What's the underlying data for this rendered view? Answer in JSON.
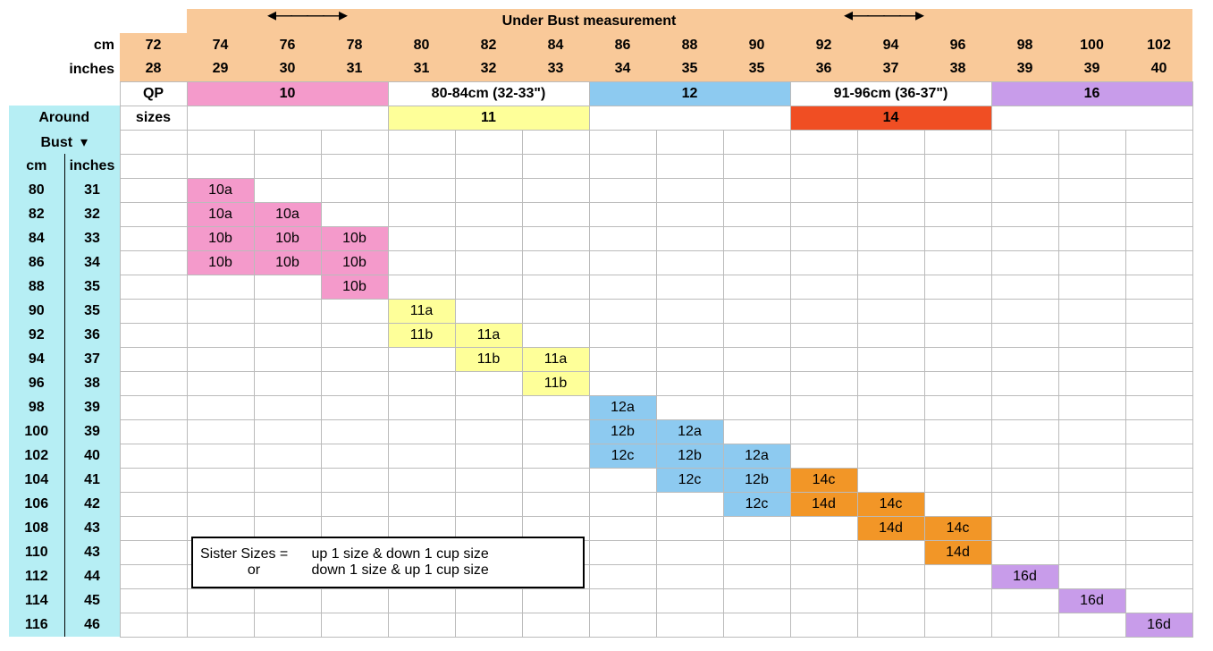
{
  "colors": {
    "peach": "#f9c999",
    "teal": "#b6eef4",
    "pink": "#f49acb",
    "yellow": "#feff99",
    "blue": "#8dcaf0",
    "orange": "#f29627",
    "orangered": "#f04e23",
    "purple": "#c89cea",
    "white": "#ffffff"
  },
  "header": {
    "title": "Under Bust measurement",
    "row_cm_label": "cm",
    "row_in_label": "inches",
    "cm": [
      72,
      74,
      76,
      78,
      80,
      82,
      84,
      86,
      88,
      90,
      92,
      94,
      96,
      98,
      100,
      102
    ],
    "in": [
      28,
      29,
      30,
      31,
      31,
      32,
      33,
      34,
      35,
      35,
      36,
      37,
      38,
      39,
      39,
      40
    ],
    "qp_label": "QP",
    "sizes_label": "sizes",
    "band1": [
      {
        "text": "10",
        "color": "pink",
        "span": 3
      },
      {
        "text": "80-84cm (32-33\")",
        "color": "white",
        "span": 3
      },
      {
        "text": "12",
        "color": "blue",
        "span": 3
      },
      {
        "text": "91-96cm (36-37\")",
        "color": "white",
        "span": 3
      },
      {
        "text": "16",
        "color": "purple",
        "span": 3
      }
    ],
    "band2": [
      {
        "text": "",
        "color": "white",
        "span": 3
      },
      {
        "text": "11",
        "color": "yellow",
        "span": 3
      },
      {
        "text": "",
        "color": "white",
        "span": 3
      },
      {
        "text": "14",
        "color": "orangered",
        "span": 3
      },
      {
        "text": "",
        "color": "white",
        "span": 3
      }
    ]
  },
  "side": {
    "title1": "Around",
    "title2": "Bust",
    "col_cm": "cm",
    "col_in": "inches",
    "rows": [
      {
        "cm": 80,
        "in": 31
      },
      {
        "cm": 82,
        "in": 32
      },
      {
        "cm": 84,
        "in": 33
      },
      {
        "cm": 86,
        "in": 34
      },
      {
        "cm": 88,
        "in": 35
      },
      {
        "cm": 90,
        "in": 35
      },
      {
        "cm": 92,
        "in": 36
      },
      {
        "cm": 94,
        "in": 37
      },
      {
        "cm": 96,
        "in": 38
      },
      {
        "cm": 98,
        "in": 39
      },
      {
        "cm": 100,
        "in": 39
      },
      {
        "cm": 102,
        "in": 40
      },
      {
        "cm": 104,
        "in": 41
      },
      {
        "cm": 106,
        "in": 42
      },
      {
        "cm": 108,
        "in": 43
      },
      {
        "cm": 110,
        "in": 43
      },
      {
        "cm": 112,
        "in": 44
      },
      {
        "cm": 114,
        "in": 45
      },
      {
        "cm": 116,
        "in": 46
      }
    ]
  },
  "cells": {
    "0": {
      "1": {
        "t": "10a",
        "c": "pink"
      }
    },
    "1": {
      "1": {
        "t": "10a",
        "c": "pink"
      },
      "2": {
        "t": "10a",
        "c": "pink"
      }
    },
    "2": {
      "1": {
        "t": "10b",
        "c": "pink"
      },
      "2": {
        "t": "10b",
        "c": "pink"
      },
      "3": {
        "t": "10b",
        "c": "pink"
      }
    },
    "3": {
      "1": {
        "t": "10b",
        "c": "pink"
      },
      "2": {
        "t": "10b",
        "c": "pink"
      },
      "3": {
        "t": "10b",
        "c": "pink"
      }
    },
    "4": {
      "3": {
        "t": "10b",
        "c": "pink"
      }
    },
    "5": {
      "4": {
        "t": "11a",
        "c": "yellow"
      }
    },
    "6": {
      "4": {
        "t": "11b",
        "c": "yellow"
      },
      "5": {
        "t": "11a",
        "c": "yellow"
      }
    },
    "7": {
      "5": {
        "t": "11b",
        "c": "yellow"
      },
      "6": {
        "t": "11a",
        "c": "yellow"
      }
    },
    "8": {
      "6": {
        "t": "11b",
        "c": "yellow"
      }
    },
    "9": {
      "7": {
        "t": "12a",
        "c": "blue"
      }
    },
    "10": {
      "7": {
        "t": "12b",
        "c": "blue"
      },
      "8": {
        "t": "12a",
        "c": "blue"
      }
    },
    "11": {
      "7": {
        "t": "12c",
        "c": "blue"
      },
      "8": {
        "t": "12b",
        "c": "blue"
      },
      "9": {
        "t": "12a",
        "c": "blue"
      }
    },
    "12": {
      "8": {
        "t": "12c",
        "c": "blue"
      },
      "9": {
        "t": "12b",
        "c": "blue"
      },
      "10": {
        "t": "14c",
        "c": "orange"
      }
    },
    "13": {
      "9": {
        "t": "12c",
        "c": "blue"
      },
      "10": {
        "t": "14d",
        "c": "orange"
      },
      "11": {
        "t": "14c",
        "c": "orange"
      }
    },
    "14": {
      "11": {
        "t": "14d",
        "c": "orange"
      },
      "12": {
        "t": "14c",
        "c": "orange"
      }
    },
    "15": {
      "12": {
        "t": "14d",
        "c": "orange"
      }
    },
    "16": {
      "13": {
        "t": "16d",
        "c": "purple"
      }
    },
    "17": {
      "14": {
        "t": "16d",
        "c": "purple"
      }
    },
    "18": {
      "15": {
        "t": "16d",
        "c": "purple"
      }
    }
  },
  "note": {
    "line1a": "Sister Sizes =",
    "line1b": "up 1 size & down 1 cup size",
    "line2a": "or",
    "line2b": "down 1 size & up 1 cup size"
  },
  "layout": {
    "n_cols": 16,
    "arrow_left_text": "◂————▸",
    "arrow_right_text": "◂————▸",
    "arrow_down_text": "▾"
  }
}
